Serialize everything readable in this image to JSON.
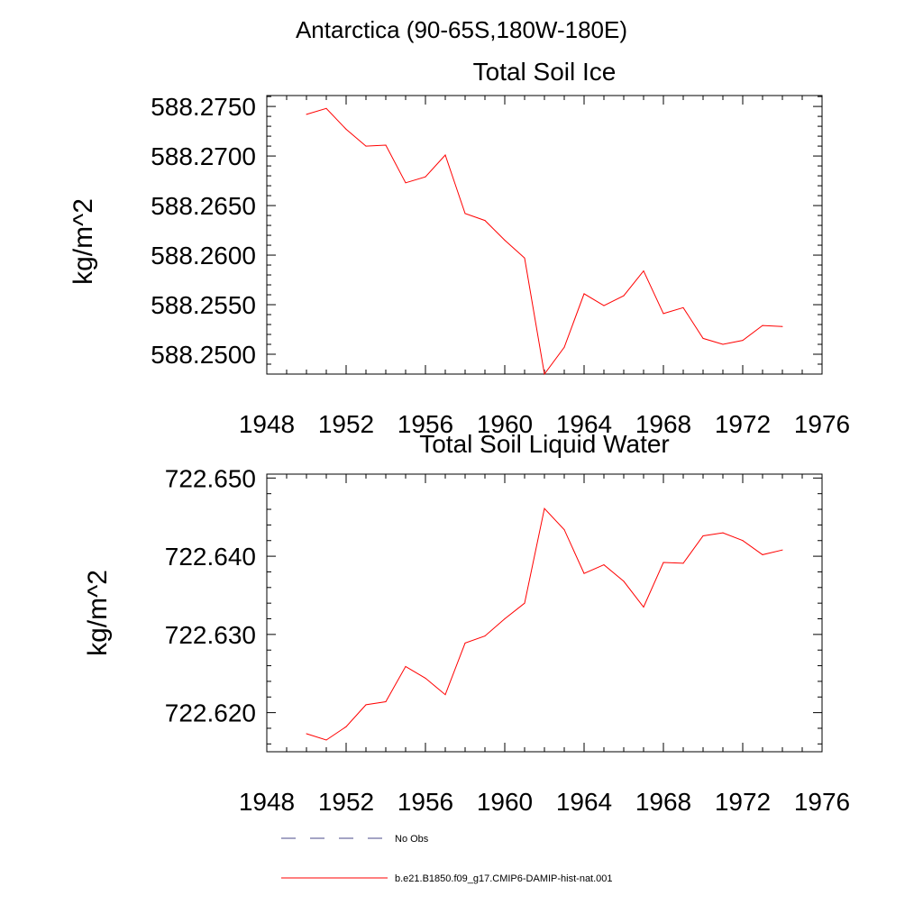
{
  "page_title": "Antarctica (90-65S,180W-180E)",
  "colors": {
    "series": "#ff0000",
    "axis": "#000000",
    "no_obs": "#4a4a8a"
  },
  "legend": {
    "no_obs_label": "No Obs",
    "model_label": "b.e21.B1850.f09_g17.CMIP6-DAMIP-hist-nat.001"
  },
  "chart_data": [
    {
      "type": "line",
      "title": "Total Soil Ice",
      "ylabel": "kg/m^2",
      "xlabel": "",
      "xlim": [
        1948,
        1976
      ],
      "ylim": [
        588.248,
        588.2761
      ],
      "x_ticks": [
        "1948",
        "1952",
        "1956",
        "1960",
        "1964",
        "1968",
        "1972",
        "1976"
      ],
      "y_ticks": [
        "588.2500",
        "588.2550",
        "588.2600",
        "588.2650",
        "588.2700",
        "588.2750"
      ],
      "x": [
        1950,
        1951,
        1952,
        1953,
        1954,
        1955,
        1956,
        1957,
        1958,
        1959,
        1960,
        1961,
        1962,
        1963,
        1964,
        1965,
        1966,
        1967,
        1968,
        1969,
        1970,
        1971,
        1972,
        1973,
        1974
      ],
      "series": [
        {
          "name": "b.e21.B1850.f09_g17.CMIP6-DAMIP-hist-nat.001",
          "values": [
            588.2742,
            588.2748,
            588.2727,
            588.271,
            588.2711,
            588.2673,
            588.2679,
            588.2701,
            588.2642,
            588.2635,
            588.2615,
            588.2597,
            588.248,
            588.2507,
            588.2561,
            588.2549,
            588.2559,
            588.2584,
            588.2541,
            588.2547,
            588.2516,
            588.251,
            588.2514,
            588.2529,
            588.2528
          ]
        }
      ],
      "grid": false
    },
    {
      "type": "line",
      "title": "Total Soil Liquid Water",
      "ylabel": "kg/m^2",
      "xlabel": "",
      "xlim": [
        1948,
        1976
      ],
      "ylim": [
        722.615,
        722.6505
      ],
      "x_ticks": [
        "1948",
        "1952",
        "1956",
        "1960",
        "1964",
        "1968",
        "1972",
        "1976"
      ],
      "y_ticks": [
        "722.620",
        "722.630",
        "722.640",
        "722.650"
      ],
      "x": [
        1950,
        1951,
        1952,
        1953,
        1954,
        1955,
        1956,
        1957,
        1958,
        1959,
        1960,
        1961,
        1962,
        1963,
        1964,
        1965,
        1966,
        1967,
        1968,
        1969,
        1970,
        1971,
        1972,
        1973,
        1974
      ],
      "series": [
        {
          "name": "b.e21.B1850.f09_g17.CMIP6-DAMIP-hist-nat.001",
          "values": [
            722.6173,
            722.6165,
            722.6182,
            722.621,
            722.6214,
            722.6259,
            722.6244,
            722.6223,
            722.6289,
            722.6298,
            722.632,
            722.634,
            722.6461,
            722.6434,
            722.6378,
            722.6389,
            722.6368,
            722.6335,
            722.6392,
            722.6391,
            722.6426,
            722.643,
            722.642,
            722.6402,
            722.6408
          ]
        }
      ],
      "grid": false
    }
  ]
}
